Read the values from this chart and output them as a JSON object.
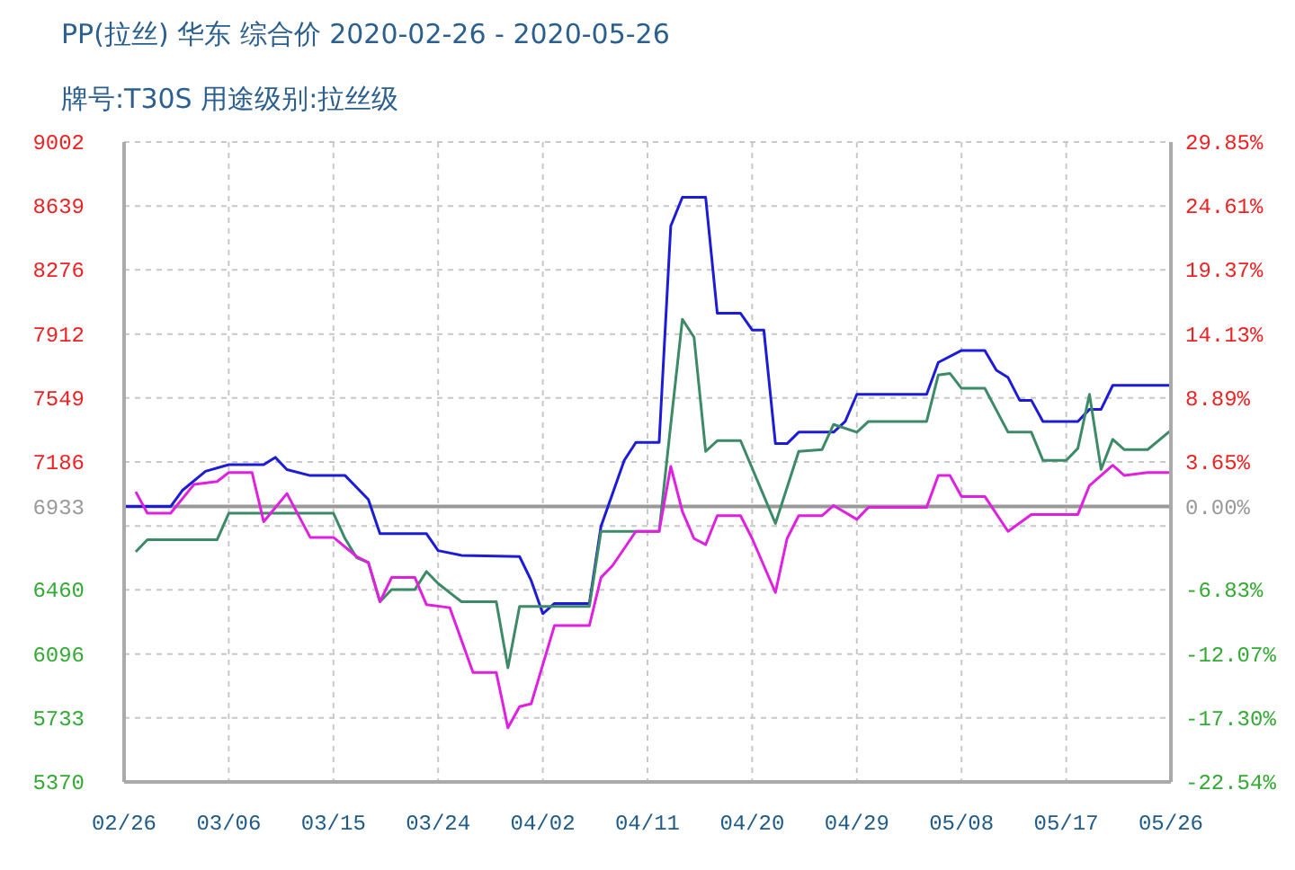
{
  "chart_data": {
    "type": "line",
    "title": "PP(拉丝) 华东 综合价 2020-02-26 - 2020-05-26",
    "subtitle": "牌号:T30S 用途级别:拉丝级",
    "xlim": [
      "2020-02-26",
      "2020-05-26"
    ],
    "xticks": [
      {
        "value": "2020-02-26",
        "label": "02/26"
      },
      {
        "value": "2020-03-06",
        "label": "03/06"
      },
      {
        "value": "2020-03-15",
        "label": "03/15"
      },
      {
        "value": "2020-03-24",
        "label": "03/24"
      },
      {
        "value": "2020-04-02",
        "label": "04/02"
      },
      {
        "value": "2020-04-11",
        "label": "04/11"
      },
      {
        "value": "2020-04-20",
        "label": "04/20"
      },
      {
        "value": "2020-04-29",
        "label": "04/29"
      },
      {
        "value": "2020-05-08",
        "label": "05/08"
      },
      {
        "value": "2020-05-17",
        "label": "05/17"
      },
      {
        "value": "2020-05-26",
        "label": "05/26"
      }
    ],
    "ylim": [
      5370,
      9002
    ],
    "yticks": [
      5370,
      5733,
      6096,
      6460,
      {
        "value": 6823,
        "label": null
      },
      6933,
      7186,
      7549,
      7912,
      8276,
      8639,
      9002
    ],
    "y2lim": [
      -22.54,
      29.85
    ],
    "y2ticks": [
      {
        "value": -22.54,
        "label": "-22.54%"
      },
      {
        "value": -17.3,
        "label": "-17.30%"
      },
      {
        "value": -12.07,
        "label": "-12.07%"
      },
      {
        "value": -6.83,
        "label": "-6.83%"
      },
      {
        "value": 0,
        "label": "0.00%"
      },
      {
        "value": 3.65,
        "label": "3.65%"
      },
      {
        "value": 8.89,
        "label": "8.89%"
      },
      {
        "value": 14.13,
        "label": "14.13%"
      },
      {
        "value": 19.37,
        "label": "19.37%"
      },
      {
        "value": 24.61,
        "label": "24.61%"
      },
      {
        "value": 29.85,
        "label": "29.85%"
      }
    ],
    "grid": true,
    "ref_lines": [
      {
        "axis": "y",
        "value": 6933,
        "label": null,
        "color": "#999999"
      }
    ],
    "series": [
      {
        "color": "#1c1cd8",
        "x": [
          "2020-02-26",
          "2020-03-01",
          "2020-03-02",
          "2020-03-04",
          "2020-03-06",
          "2020-03-09",
          "2020-03-10",
          "2020-03-11",
          "2020-03-13",
          "2020-03-16",
          "2020-03-18",
          "2020-03-19",
          "2020-03-23",
          "2020-03-24",
          "2020-03-26",
          "2020-03-31",
          "2020-04-01",
          "2020-04-02",
          "2020-04-03",
          "2020-04-06",
          "2020-04-07",
          "2020-04-09",
          "2020-04-10",
          "2020-04-12",
          "2020-04-13",
          "2020-04-14",
          "2020-04-16",
          "2020-04-17",
          "2020-04-19",
          "2020-04-20",
          "2020-04-21",
          "2020-04-22",
          "2020-04-23",
          "2020-04-24",
          "2020-04-27",
          "2020-04-28",
          "2020-04-29",
          "2020-05-05",
          "2020-05-06",
          "2020-05-08",
          "2020-05-10",
          "2020-05-11",
          "2020-05-12",
          "2020-05-13",
          "2020-05-14",
          "2020-05-15",
          "2020-05-18",
          "2020-05-19",
          "2020-05-20",
          "2020-05-21",
          "2020-05-26"
        ],
        "values": [
          6933,
          6933,
          7024,
          7133,
          7171,
          7171,
          7212,
          7143,
          7109,
          7109,
          6973,
          6779,
          6779,
          6683,
          6656,
          6649,
          6513,
          6325,
          6383,
          6383,
          6820,
          7195,
          7297,
          7297,
          8525,
          8688,
          8688,
          8030,
          8030,
          7935,
          7935,
          7290,
          7290,
          7355,
          7355,
          7416,
          7570,
          7570,
          7751,
          7819,
          7819,
          7706,
          7665,
          7536,
          7536,
          7416,
          7416,
          7485,
          7485,
          7621,
          7621
        ]
      },
      {
        "color": "#3d8a68",
        "x": [
          "2020-02-27",
          "2020-02-28",
          "2020-03-05",
          "2020-03-06",
          "2020-03-15",
          "2020-03-16",
          "2020-03-17",
          "2020-03-18",
          "2020-03-19",
          "2020-03-20",
          "2020-03-22",
          "2020-03-23",
          "2020-03-24",
          "2020-03-26",
          "2020-03-29",
          "2020-03-30",
          "2020-03-31",
          "2020-04-06",
          "2020-04-07",
          "2020-04-12",
          "2020-04-13",
          "2020-04-14",
          "2020-04-15",
          "2020-04-16",
          "2020-04-17",
          "2020-04-19",
          "2020-04-22",
          "2020-04-24",
          "2020-04-26",
          "2020-04-27",
          "2020-04-29",
          "2020-04-30",
          "2020-05-05",
          "2020-05-06",
          "2020-05-07",
          "2020-05-08",
          "2020-05-10",
          "2020-05-12",
          "2020-05-14",
          "2020-05-15",
          "2020-05-17",
          "2020-05-18",
          "2020-05-19",
          "2020-05-20",
          "2020-05-21",
          "2020-05-22",
          "2020-05-24",
          "2020-05-26"
        ],
        "values": [
          6676,
          6745,
          6745,
          6895,
          6895,
          6751,
          6642,
          6615,
          6393,
          6462,
          6462,
          6564,
          6496,
          6393,
          6393,
          6018,
          6366,
          6366,
          6792,
          6792,
          7399,
          7996,
          7894,
          7246,
          7307,
          7307,
          6837,
          7246,
          7256,
          7399,
          7355,
          7416,
          7416,
          7679,
          7689,
          7604,
          7604,
          7355,
          7355,
          7195,
          7195,
          7263,
          7570,
          7144,
          7314,
          7256,
          7256,
          7365
        ]
      },
      {
        "color": "#e020e0",
        "x": [
          "2020-02-27",
          "2020-02-28",
          "2020-03-01",
          "2020-03-03",
          "2020-03-05",
          "2020-03-06",
          "2020-03-08",
          "2020-03-09",
          "2020-03-11",
          "2020-03-13",
          "2020-03-15",
          "2020-03-17",
          "2020-03-18",
          "2020-03-19",
          "2020-03-20",
          "2020-03-22",
          "2020-03-23",
          "2020-03-25",
          "2020-03-27",
          "2020-03-29",
          "2020-03-30",
          "2020-03-31",
          "2020-04-01",
          "2020-04-03",
          "2020-04-06",
          "2020-04-07",
          "2020-04-08",
          "2020-04-10",
          "2020-04-12",
          "2020-04-13",
          "2020-04-14",
          "2020-04-15",
          "2020-04-16",
          "2020-04-17",
          "2020-04-19",
          "2020-04-20",
          "2020-04-22",
          "2020-04-23",
          "2020-04-24",
          "2020-04-26",
          "2020-04-27",
          "2020-04-29",
          "2020-04-30",
          "2020-05-05",
          "2020-05-06",
          "2020-05-07",
          "2020-05-08",
          "2020-05-10",
          "2020-05-12",
          "2020-05-14",
          "2020-05-18",
          "2020-05-19",
          "2020-05-21",
          "2020-05-22",
          "2020-05-24",
          "2020-05-26"
        ],
        "values": [
          7017,
          6895,
          6895,
          7058,
          7075,
          7126,
          7126,
          6847,
          7007,
          6758,
          6758,
          6649,
          6615,
          6393,
          6530,
          6530,
          6376,
          6359,
          5991,
          5991,
          5677,
          5797,
          5814,
          6257,
          6257,
          6530,
          6598,
          6792,
          6792,
          7161,
          6905,
          6751,
          6717,
          6881,
          6881,
          6751,
          6445,
          6751,
          6881,
          6881,
          6939,
          6860,
          6929,
          6929,
          7109,
          7109,
          6990,
          6990,
          6792,
          6888,
          6888,
          7052,
          7167,
          7109,
          7126,
          7126
        ]
      }
    ]
  }
}
